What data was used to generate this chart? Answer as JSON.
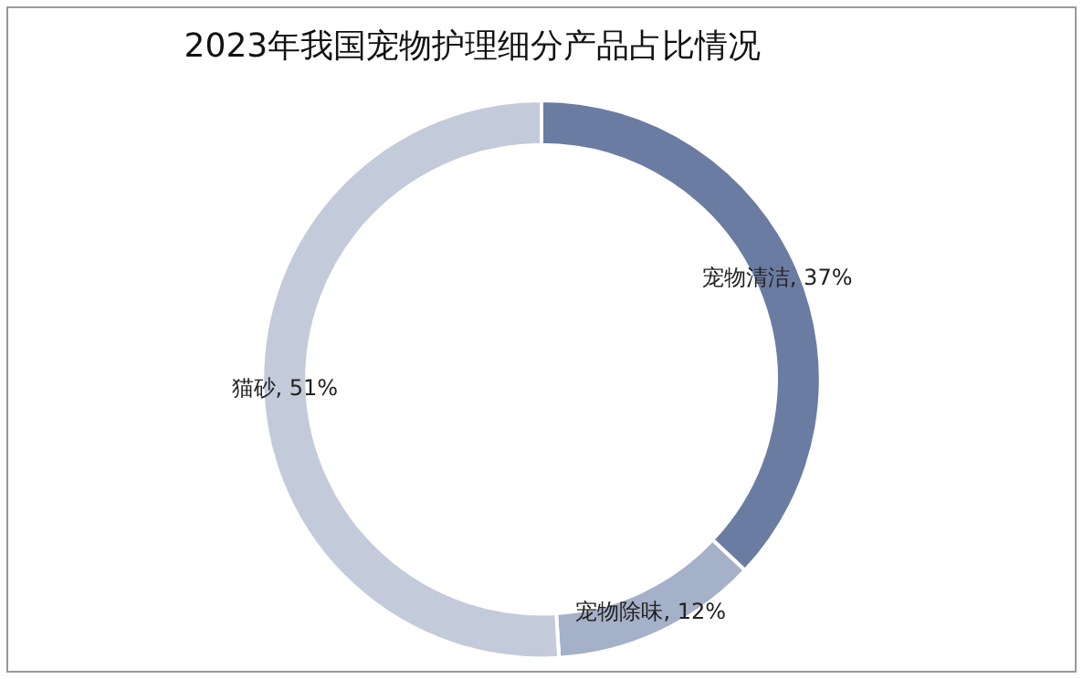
{
  "chart_data": {
    "type": "donut",
    "title": "2023年我国宠物护理细分产品占比情况",
    "categories": [
      "宠物清洁",
      "宠物除味",
      "猫砂"
    ],
    "values": [
      37,
      12,
      51
    ],
    "value_labels": [
      "37%",
      "12%",
      "51%"
    ],
    "colors": [
      "#6b7ca3",
      "#a5b0c9",
      "#c3cada"
    ],
    "legend": false
  }
}
